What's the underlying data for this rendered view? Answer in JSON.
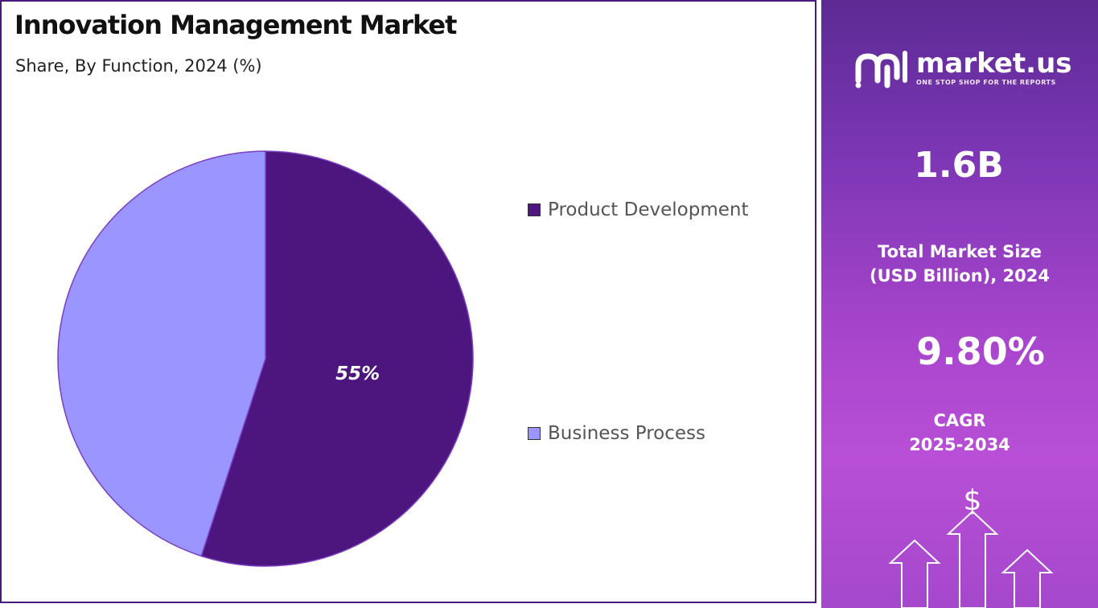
{
  "title": "Innovation Management Market",
  "subtitle": "Share, By Function, 2024 (%)",
  "chart_data": {
    "type": "pie",
    "title": "Innovation Management Market",
    "subtitle": "Share, By Function, 2024 (%)",
    "categories": [
      "Product Development",
      "Business Process"
    ],
    "values": [
      55,
      45
    ],
    "colors": [
      "#4c167e",
      "#9a95ff"
    ],
    "slice_labels": [
      "55%",
      ""
    ],
    "legend_position": "right"
  },
  "sidebar": {
    "brand_name": "market.us",
    "brand_tagline": "ONE STOP SHOP FOR THE REPORTS",
    "market_size_value": "1.6B",
    "market_size_caption_line1": "Total Market Size",
    "market_size_caption_line2": "(USD Billion), 2024",
    "cagr_value": "9.80%",
    "cagr_caption_line1": "CAGR",
    "cagr_caption_line2": "2025-2034",
    "dollar_symbol": "$",
    "icons": [
      "market-us-logo-icon",
      "dollar-icon",
      "growth-arrows-icon"
    ]
  }
}
